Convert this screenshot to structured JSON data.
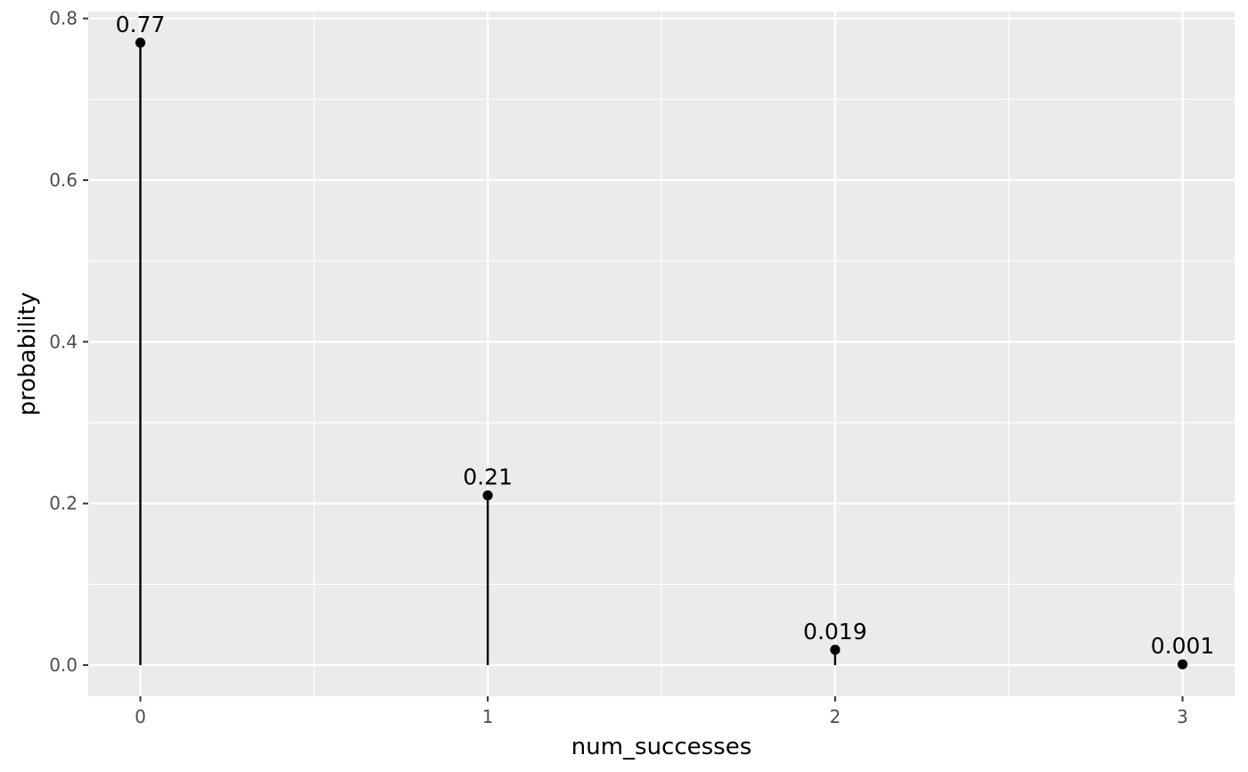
{
  "chart_data": {
    "type": "lollipop",
    "xlabel": "num_successes",
    "ylabel": "probability",
    "x": [
      0,
      1,
      2,
      3
    ],
    "values": [
      0.77,
      0.21,
      0.019,
      0.001
    ],
    "data_labels": [
      "0.77",
      "0.21",
      "0.019",
      "0.001"
    ],
    "xlim": [
      -0.15,
      3.15
    ],
    "ylim": [
      -0.0385,
      0.8085
    ],
    "x_ticks": [
      0,
      1,
      2,
      3
    ],
    "x_tick_labels": [
      "0",
      "1",
      "2",
      "3"
    ],
    "y_ticks": [
      0.0,
      0.2,
      0.4,
      0.6,
      0.8
    ],
    "y_tick_labels": [
      "0.0",
      "0.2",
      "0.4",
      "0.6",
      "0.8"
    ],
    "grid": true,
    "legend": "none",
    "colors": {
      "panel_background": "#ebebeb",
      "grid": "#ffffff",
      "mark": "#000000",
      "tick_text": "#4d4d4d"
    }
  }
}
